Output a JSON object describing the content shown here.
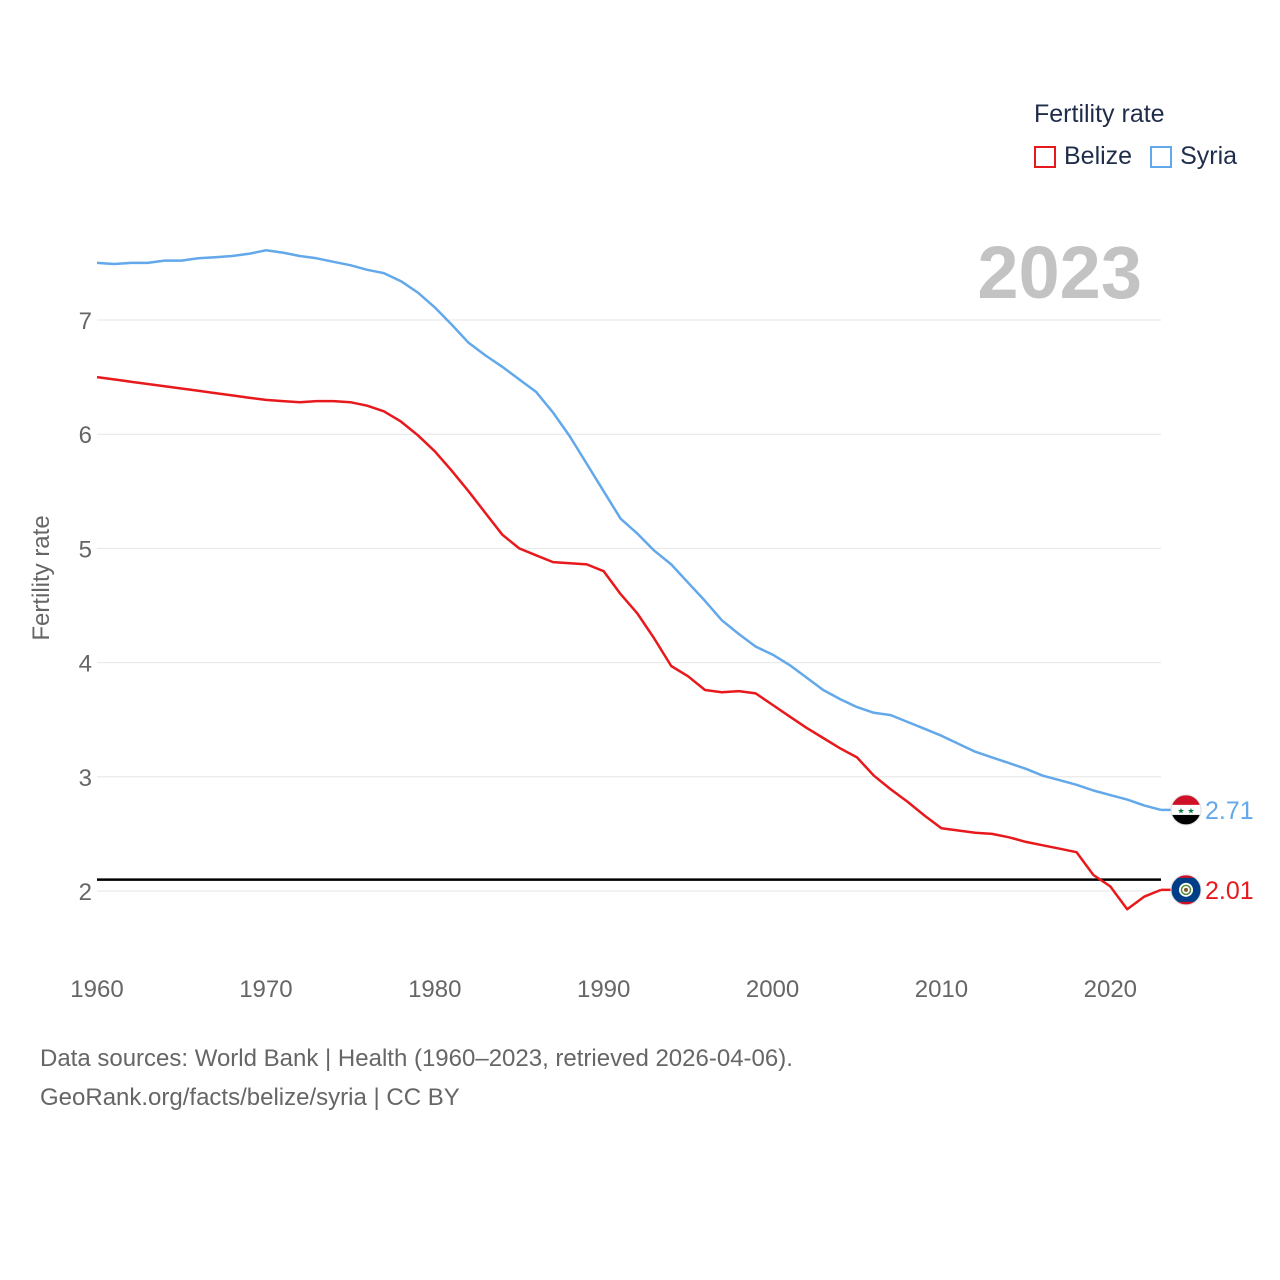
{
  "legend": {
    "title": "Fertility rate",
    "items": [
      {
        "label": "Belize",
        "color": "#e8191c"
      },
      {
        "label": "Syria",
        "color": "#62a8ea"
      }
    ]
  },
  "current_year": "2023",
  "footer": {
    "line1": "Data sources: World Bank | Health (1960–2023, retrieved 2026-04-06).",
    "line2": "GeoRank.org/facts/belize/syria | CC BY"
  },
  "chart_data": {
    "type": "line",
    "title": "Fertility rate",
    "xlabel": "",
    "ylabel": "Fertility rate",
    "xlim": [
      1960,
      2023
    ],
    "ylim": [
      1.5,
      7.8
    ],
    "xticks": [
      1960,
      1970,
      1980,
      1990,
      2000,
      2010,
      2020
    ],
    "yticks": [
      2,
      3,
      4,
      5,
      6,
      7
    ],
    "reference_line": 2.1,
    "x": [
      1960,
      1961,
      1962,
      1963,
      1964,
      1965,
      1966,
      1967,
      1968,
      1969,
      1970,
      1971,
      1972,
      1973,
      1974,
      1975,
      1976,
      1977,
      1978,
      1979,
      1980,
      1981,
      1982,
      1983,
      1984,
      1985,
      1986,
      1987,
      1988,
      1989,
      1990,
      1991,
      1992,
      1993,
      1994,
      1995,
      1996,
      1997,
      1998,
      1999,
      2000,
      2001,
      2002,
      2003,
      2004,
      2005,
      2006,
      2007,
      2008,
      2009,
      2010,
      2011,
      2012,
      2013,
      2014,
      2015,
      2016,
      2017,
      2018,
      2019,
      2020,
      2021,
      2022,
      2023
    ],
    "series": [
      {
        "name": "Belize",
        "color": "#e8191c",
        "end_label": "2.01",
        "values": [
          6.5,
          6.48,
          6.46,
          6.44,
          6.42,
          6.4,
          6.38,
          6.36,
          6.34,
          6.32,
          6.3,
          6.29,
          6.28,
          6.29,
          6.29,
          6.28,
          6.25,
          6.2,
          6.11,
          5.99,
          5.85,
          5.68,
          5.5,
          5.31,
          5.12,
          5.0,
          4.94,
          4.88,
          4.87,
          4.86,
          4.8,
          4.6,
          4.43,
          4.21,
          3.97,
          3.88,
          3.76,
          3.74,
          3.75,
          3.73,
          3.63,
          3.53,
          3.43,
          3.34,
          3.25,
          3.17,
          3.01,
          2.89,
          2.78,
          2.66,
          2.55,
          2.53,
          2.51,
          2.5,
          2.47,
          2.43,
          2.4,
          2.37,
          2.34,
          2.14,
          2.04,
          1.84,
          1.95,
          2.01
        ]
      },
      {
        "name": "Syria",
        "color": "#62a8ea",
        "end_label": "2.71",
        "values": [
          7.5,
          7.49,
          7.5,
          7.5,
          7.52,
          7.52,
          7.54,
          7.55,
          7.56,
          7.58,
          7.61,
          7.59,
          7.56,
          7.54,
          7.51,
          7.48,
          7.44,
          7.41,
          7.34,
          7.24,
          7.11,
          6.96,
          6.8,
          6.69,
          6.59,
          6.48,
          6.37,
          6.19,
          5.98,
          5.74,
          5.5,
          5.26,
          5.13,
          4.98,
          4.86,
          4.7,
          4.54,
          4.37,
          4.25,
          4.14,
          4.07,
          3.98,
          3.87,
          3.76,
          3.68,
          3.61,
          3.56,
          3.54,
          3.48,
          3.42,
          3.36,
          3.29,
          3.22,
          3.17,
          3.12,
          3.07,
          3.01,
          2.97,
          2.93,
          2.88,
          2.84,
          2.8,
          2.75,
          2.71
        ]
      }
    ]
  }
}
